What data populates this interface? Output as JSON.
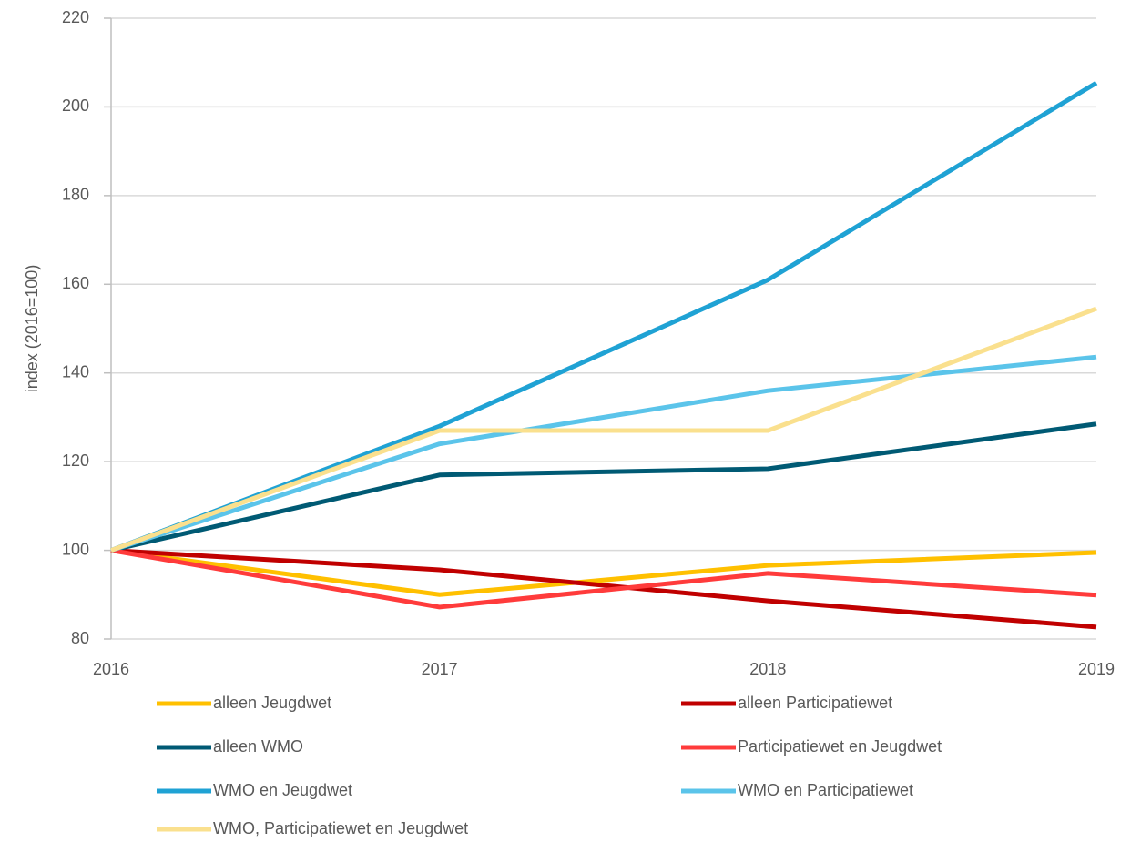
{
  "chart_data": {
    "type": "line",
    "ylabel": "index (2016=100)",
    "x": [
      2016,
      2017,
      2018,
      2019
    ],
    "xlim": [
      2016,
      2019
    ],
    "xticks": [
      2016,
      2017,
      2018,
      2019
    ],
    "ylim": [
      80,
      220
    ],
    "yticks": [
      80,
      100,
      120,
      140,
      160,
      180,
      200,
      220
    ],
    "grid": true,
    "legend": "bottom",
    "series": [
      {
        "name": "alleen Jeugdwet",
        "color": "#ffc000",
        "values": [
          100,
          90,
          96.6,
          99.5
        ]
      },
      {
        "name": "alleen Participatiewet",
        "color": "#c00000",
        "values": [
          100,
          95.6,
          88.6,
          82.7
        ]
      },
      {
        "name": "alleen WMO",
        "color": "#005a74",
        "values": [
          100,
          117,
          118.4,
          128.5
        ]
      },
      {
        "name": "Participatiewet en Jeugdwet",
        "color": "#ff3b3b",
        "values": [
          100,
          87.2,
          94.8,
          89.9
        ]
      },
      {
        "name": "WMO en Jeugdwet",
        "color": "#1fa2d4",
        "values": [
          100,
          128,
          161,
          205.4
        ]
      },
      {
        "name": "WMO en Participatiewet",
        "color": "#5bc4ea",
        "values": [
          100,
          124,
          136,
          143.6
        ]
      },
      {
        "name": "WMO, Participatiewet en Jeugdwet",
        "color": "#fae08e",
        "values": [
          100,
          127,
          127,
          154.5
        ]
      }
    ]
  }
}
